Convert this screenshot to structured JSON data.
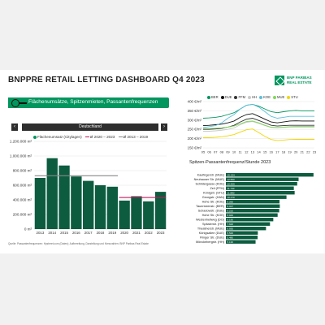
{
  "header": {
    "title": "BNPPRE RETAIL LETTING DASHBOARD",
    "quarter": "Q4 2023",
    "logo_line1": "BNP PARIBAS",
    "logo_line2": "REAL ESTATE",
    "tagline": "Flächenumsätze, Spitzenmieten, Passantenfrequenzen"
  },
  "selector": {
    "value": "Deutschland",
    "prev": "‹",
    "next": "›"
  },
  "legend_left": {
    "s1": "Flächenumsatz (Citylagen)",
    "s2": "Ø 2020 – 2023",
    "s3": "Ø 2013 – 2019"
  },
  "source_note": "Quelle: Passantenfrequenzen: Hystreet.com (Daten); Aufbereitung, Darstellung und Kennzahlen: BNP Paribas Real Estate",
  "right_subtitle": "Spitzen-Passantenfrequenz/Stunde 2023",
  "colors": {
    "accent": "#00965e",
    "dark_green": "#0d5c40",
    "avg_recent": "#c2185b",
    "avg_old": "#888888"
  },
  "chart_data": [
    {
      "type": "bar",
      "categories": [
        "2013",
        "2014",
        "2015",
        "2016",
        "2017",
        "2018",
        "2019",
        "2020",
        "2021",
        "2022",
        "2023"
      ],
      "series": [
        {
          "name": "Flächenumsatz (Citylagen)",
          "values": [
            700000,
            970000,
            870000,
            720000,
            660000,
            600000,
            580000,
            390000,
            450000,
            380000,
            510000
          ]
        }
      ],
      "averages": [
        {
          "name": "Ø 2013 – 2019",
          "value": 730000,
          "from": "2013",
          "to": "2019"
        },
        {
          "name": "Ø 2020 – 2023",
          "value": 432500,
          "from": "2020",
          "to": "2023"
        }
      ],
      "ylim": [
        0,
        1200000
      ],
      "yticks": [
        "0 m²",
        "200.000 m²",
        "400.000 m²",
        "600.000 m²",
        "800.000 m²",
        "1.000.000 m²",
        "1.200.000 m²"
      ],
      "grid": true
    },
    {
      "type": "line",
      "x": [
        "05",
        "06",
        "07",
        "08",
        "09",
        "10",
        "11",
        "12",
        "13",
        "14",
        "15",
        "16",
        "17",
        "18",
        "19",
        "20",
        "21",
        "22",
        "23"
      ],
      "series": [
        {
          "name": "BER",
          "color": "#00965e",
          "values": [
            310,
            312,
            315,
            320,
            330,
            340,
            360,
            380,
            385,
            375,
            360,
            345,
            340,
            345,
            350,
            352,
            350,
            350,
            350
          ]
        },
        {
          "name": "DUE",
          "color": "#111111",
          "values": [
            270,
            272,
            275,
            278,
            285,
            295,
            315,
            330,
            335,
            320,
            305,
            290,
            285,
            290,
            295,
            296,
            295,
            295,
            295
          ]
        },
        {
          "name": "FFM",
          "color": "#333333",
          "values": [
            250,
            250,
            252,
            255,
            262,
            272,
            290,
            305,
            310,
            298,
            285,
            272,
            268,
            270,
            272,
            272,
            272,
            272,
            272
          ]
        },
        {
          "name": "HH",
          "color": "#c9c9c9",
          "values": [
            240,
            240,
            242,
            245,
            250,
            258,
            275,
            288,
            292,
            282,
            270,
            260,
            258,
            260,
            262,
            262,
            262,
            262,
            262
          ]
        },
        {
          "name": "KOE",
          "color": "#5bc0de",
          "values": [
            260,
            265,
            270,
            285,
            310,
            330,
            360,
            380,
            385,
            370,
            345,
            320,
            310,
            315,
            320,
            320,
            320,
            320,
            320
          ]
        },
        {
          "name": "MUE",
          "color": "#7ed957",
          "values": [
            255,
            255,
            256,
            258,
            262,
            268,
            280,
            292,
            295,
            285,
            272,
            262,
            260,
            262,
            265,
            266,
            266,
            266,
            266
          ]
        },
        {
          "name": "STU",
          "color": "#f2d600",
          "values": [
            205,
            205,
            207,
            210,
            215,
            222,
            235,
            248,
            252,
            232,
            212,
            195,
            190,
            192,
            195,
            196,
            196,
            196,
            196
          ]
        }
      ],
      "yticks": [
        "150 €/m²",
        "200 €/m²",
        "250 €/m²",
        "300 €/m²",
        "350 €/m²",
        "400 €/m²"
      ],
      "ylim": [
        150,
        400
      ],
      "grid": true
    },
    {
      "type": "bar",
      "orientation": "horizontal",
      "title": "Spitzen-Passantenfrequenz/Stunde 2023",
      "categories": [
        "Kaufingerstr. (MUE)",
        "Neuhauser Str. (MUE)",
        "Schildergasse (KOE)",
        "Zeil (FFM)",
        "Königstr. (STU)",
        "Georgstr. (HAN)",
        "Hohe Str. (KOE)",
        "Tauentzienstr. (BER)",
        "Schadowstr. (DUE)",
        "Hohe Str. (KOE)",
        "Westenhellweg (DO)",
        "Spitalerstr. (HH)",
        "Theatinerstr. (MUE)",
        "Königsallee (DUE)",
        "Flinger Str. (DUE)",
        "Mönckebergstr. (HH)"
      ],
      "values": [
        15134,
        12560,
        12320,
        11740,
        11880,
        10470,
        9260,
        9317,
        9210,
        8940,
        8190,
        7620,
        6930,
        5520,
        5480,
        5130
      ],
      "value_labels": [
        "15.134",
        "12.560",
        "12.320",
        "11.740",
        "11.880",
        "10.470",
        "9.260",
        "9.317",
        "9.210",
        "8.940",
        "8.190",
        "7.620",
        "6.930",
        "5.520",
        "5.480",
        "5.130"
      ],
      "xlim": [
        0,
        16000
      ]
    }
  ]
}
